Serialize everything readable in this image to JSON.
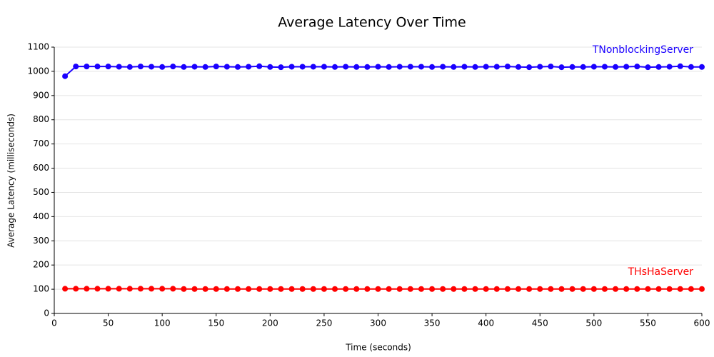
{
  "chart_data": {
    "type": "line",
    "title": "Average Latency Over Time",
    "x_label": "Time (seconds)",
    "y_label": "Average Latency (milliseconds)",
    "x": [
      10,
      20,
      30,
      40,
      50,
      60,
      70,
      80,
      90,
      100,
      110,
      120,
      130,
      140,
      150,
      160,
      170,
      180,
      190,
      200,
      210,
      220,
      230,
      240,
      250,
      260,
      270,
      280,
      290,
      300,
      310,
      320,
      330,
      340,
      350,
      360,
      370,
      380,
      390,
      400,
      410,
      420,
      430,
      440,
      450,
      460,
      470,
      480,
      490,
      500,
      510,
      520,
      530,
      540,
      550,
      560,
      570,
      580,
      590,
      600
    ],
    "series": [
      {
        "name": "TNonblockingServer",
        "color": "#1a00ff",
        "values": [
          980,
          1020,
          1020,
          1020,
          1020,
          1019,
          1018,
          1020,
          1019,
          1018,
          1020,
          1018,
          1019,
          1018,
          1020,
          1019,
          1018,
          1019,
          1021,
          1018,
          1017,
          1019,
          1019,
          1019,
          1019,
          1018,
          1019,
          1018,
          1018,
          1019,
          1018,
          1019,
          1019,
          1019,
          1018,
          1019,
          1018,
          1019,
          1018,
          1019,
          1019,
          1020,
          1018,
          1017,
          1019,
          1020,
          1017,
          1018,
          1018,
          1019,
          1019,
          1018,
          1019,
          1020,
          1017,
          1018,
          1019,
          1021,
          1018,
          1018
        ]
      },
      {
        "name": "THsHaServer",
        "color": "#ff0000",
        "values": [
          102,
          102,
          102,
          102,
          102,
          102,
          102,
          102,
          102,
          102,
          102,
          101,
          101,
          101,
          101,
          101,
          101,
          101,
          101,
          101,
          101,
          101,
          101,
          101,
          101,
          101,
          101,
          101,
          101,
          101,
          101,
          101,
          101,
          101,
          101,
          101,
          101,
          101,
          101,
          101,
          101,
          101,
          101,
          101,
          101,
          101,
          101,
          101,
          101,
          101,
          101,
          101,
          101,
          101,
          101,
          101,
          101,
          101,
          101,
          101
        ]
      }
    ],
    "xlim": [
      0,
      600
    ],
    "xticks": [
      0,
      50,
      100,
      150,
      200,
      250,
      300,
      350,
      400,
      450,
      500,
      550,
      600
    ],
    "ylim": [
      0,
      1100
    ],
    "yticks": [
      0,
      100,
      200,
      300,
      400,
      500,
      600,
      700,
      800,
      900,
      1000,
      1100
    ],
    "grid": true
  }
}
